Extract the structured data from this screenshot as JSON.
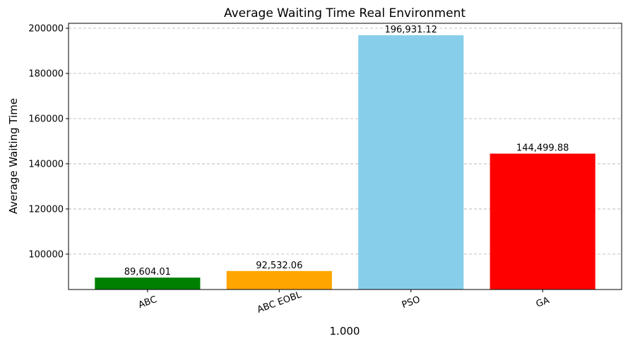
{
  "chart_data": {
    "type": "bar",
    "title": "Average Waiting Time Real Environment",
    "xlabel": "1.000",
    "ylabel": "Average Waiting Time",
    "categories": [
      "ABC",
      "ABC EOBL",
      "PSO",
      "GA"
    ],
    "values": [
      89604.01,
      92532.06,
      196931.12,
      144499.88
    ],
    "value_labels": [
      "89,604.01",
      "92,532.06",
      "196,931.12",
      "144,499.88"
    ],
    "colors": [
      "#008000",
      "#ffa500",
      "#87ceeb",
      "#ff0000"
    ],
    "ylim": [
      84336,
      202194
    ],
    "yticks": [
      100000,
      120000,
      140000,
      160000,
      180000,
      200000
    ],
    "ytick_labels": [
      "100000",
      "120000",
      "140000",
      "160000",
      "180000",
      "200000"
    ],
    "grid": "y-dashed",
    "xtick_rotation": -20
  }
}
